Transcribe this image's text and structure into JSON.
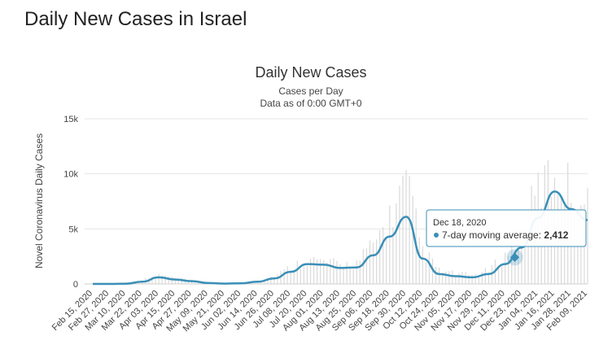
{
  "page": {
    "heading": "Daily New Cases in Israel"
  },
  "colors": {
    "line": "#3a8fb7",
    "bars": "#d9d9d9",
    "grid": "#e6e6e6",
    "tooltip_border": "#3a8fb7"
  },
  "chart_data": {
    "type": "line",
    "title": "Daily New Cases",
    "subtitle": "Cases per Day",
    "subtitle2": "Data as of 0:00 GMT+0",
    "ylabel": "Novel Coronavirus Daily Cases",
    "xlabel": "",
    "ylim": [
      0,
      15000
    ],
    "y_ticks": [
      {
        "value": 0,
        "label": "0"
      },
      {
        "value": 5000,
        "label": "5k"
      },
      {
        "value": 10000,
        "label": "10k"
      },
      {
        "value": 15000,
        "label": "15k"
      }
    ],
    "x_tick_labels": [
      "Feb 15, 2020",
      "Feb 27, 2020",
      "Mar 10, 2020",
      "Mar 22, 2020",
      "Apr 03, 2020",
      "Apr 15, 2020",
      "Apr 27, 2020",
      "May 09, 2020",
      "May 21, 2020",
      "Jun 02, 2020",
      "Jun 14, 2020",
      "Jun 26, 2020",
      "Jul 08, 2020",
      "Jul 20, 2020",
      "Aug 01, 2020",
      "Aug 13, 2020",
      "Aug 25, 2020",
      "Sep 06, 2020",
      "Sep 18, 2020",
      "Sep 30, 2020",
      "Oct 12, 2020",
      "Oct 24, 2020",
      "Nov 05, 2020",
      "Nov 17, 2020",
      "Nov 29, 2020",
      "Dec 11, 2020",
      "Dec 23, 2020",
      "Jan 04, 2021",
      "Jan 16, 2021",
      "Jan 28, 2021",
      "Feb 09, 2021"
    ],
    "series": [
      {
        "name": "7-day moving average",
        "x": [
          "Feb 15, 2020",
          "Feb 27, 2020",
          "Mar 10, 2020",
          "Mar 22, 2020",
          "Apr 03, 2020",
          "Apr 15, 2020",
          "Apr 27, 2020",
          "May 09, 2020",
          "May 21, 2020",
          "Jun 02, 2020",
          "Jun 14, 2020",
          "Jun 26, 2020",
          "Jul 08, 2020",
          "Jul 20, 2020",
          "Aug 01, 2020",
          "Aug 13, 2020",
          "Aug 25, 2020",
          "Sep 06, 2020",
          "Sep 18, 2020",
          "Sep 30, 2020",
          "Oct 12, 2020",
          "Oct 24, 2020",
          "Nov 05, 2020",
          "Nov 17, 2020",
          "Nov 29, 2020",
          "Dec 11, 2020",
          "Dec 23, 2020",
          "Jan 04, 2021",
          "Jan 16, 2021",
          "Jan 28, 2021",
          "Feb 09, 2021"
        ],
        "values": [
          0,
          0,
          20,
          200,
          600,
          400,
          250,
          80,
          30,
          60,
          200,
          500,
          1100,
          1800,
          1750,
          1450,
          1500,
          2600,
          4300,
          6100,
          2300,
          900,
          700,
          600,
          900,
          1800,
          3300,
          6000,
          8400,
          6800,
          5800
        ]
      }
    ],
    "daily_bars": {
      "name": "Daily Cases",
      "x": [
        "Feb 15, 2020",
        "Feb 27, 2020",
        "Mar 10, 2020",
        "Mar 22, 2020",
        "Apr 03, 2020",
        "Apr 15, 2020",
        "Apr 27, 2020",
        "May 09, 2020",
        "May 21, 2020",
        "Jun 02, 2020",
        "Jun 14, 2020",
        "Jun 26, 2020",
        "Jul 08, 2020",
        "Jul 20, 2020",
        "Aug 01, 2020",
        "Aug 13, 2020",
        "Aug 25, 2020",
        "Sep 06, 2020",
        "Sep 18, 2020",
        "Sep 30, 2020",
        "Oct 12, 2020",
        "Oct 24, 2020",
        "Nov 05, 2020",
        "Nov 17, 2020",
        "Nov 29, 2020",
        "Dec 11, 2020",
        "Dec 23, 2020",
        "Jan 04, 2021",
        "Jan 16, 2021",
        "Jan 28, 2021",
        "Feb 09, 2021"
      ],
      "values": [
        0,
        0,
        30,
        300,
        800,
        500,
        300,
        100,
        40,
        80,
        300,
        700,
        1500,
        2200,
        2000,
        1700,
        1900,
        3500,
        6000,
        9000,
        3000,
        1200,
        900,
        800,
        1200,
        2500,
        4500,
        8500,
        10000,
        8500,
        7000
      ]
    },
    "tooltip": {
      "date": "Dec 18, 2020",
      "label": "7-day moving average:",
      "value": "2,412",
      "value_number": 2412
    },
    "grid": true,
    "legend": "none"
  }
}
